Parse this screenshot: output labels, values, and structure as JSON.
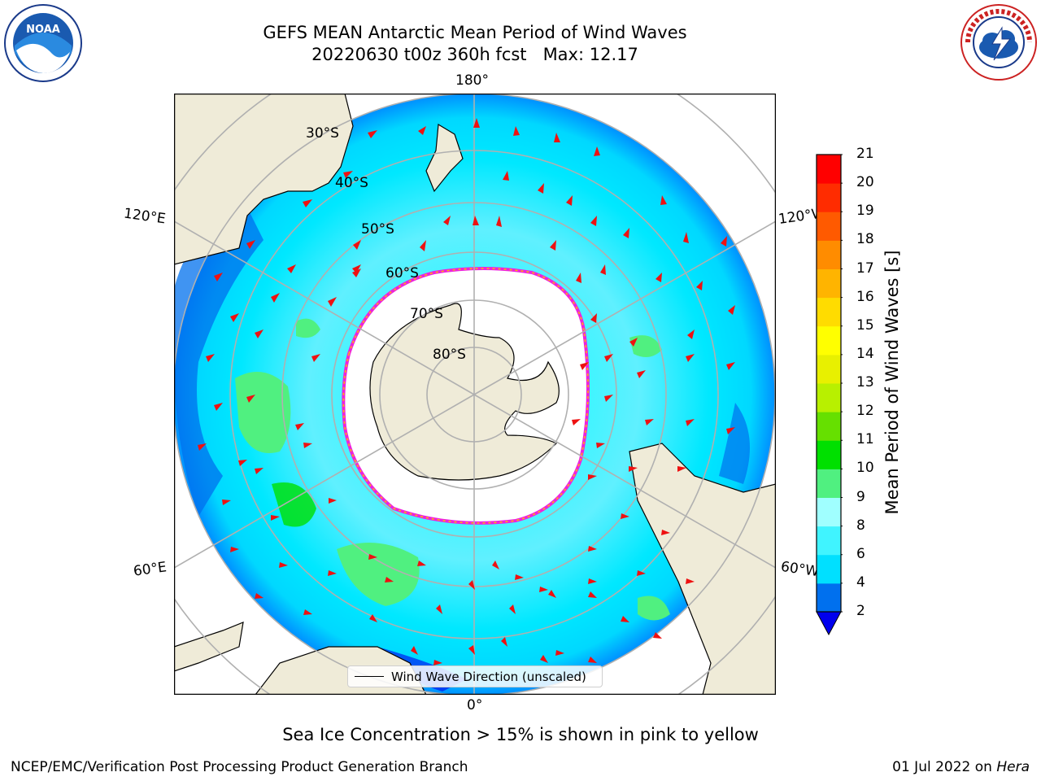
{
  "header": {
    "title_line1": "GEFS MEAN Antarctic Mean Period of Wind Waves",
    "title_line2": "20220630 t00z 360h fcst   Max: 12.17"
  },
  "logos": {
    "left_icon": "noaa-logo-icon",
    "left_text": "NOAA",
    "right_icon": "nws-logo-icon"
  },
  "map": {
    "longitude_labels": {
      "top": "180°",
      "bottom": "0°",
      "upper_left": "120°E",
      "upper_right": "120°W",
      "lower_left": "60°E",
      "lower_right": "60°W"
    },
    "latitude_labels": [
      "30°S",
      "40°S",
      "50°S",
      "60°S",
      "70°S",
      "80°S"
    ],
    "colors": {
      "land": "#efebd8",
      "ice": "#ffffff",
      "ice_edge": "#ee22dd",
      "ice_edge_inner": "#ffbb00",
      "grid": "#b0b0b0",
      "arrow": "#ee1111"
    },
    "legend_label": "Wind Wave Direction (unscaled)"
  },
  "colorbar": {
    "label": "Mean Period of Wind Waves [s]",
    "ticks": [
      "2",
      "4",
      "6",
      "8",
      "9",
      "10",
      "11",
      "12",
      "13",
      "14",
      "15",
      "16",
      "17",
      "18",
      "19",
      "20",
      "21"
    ],
    "colors": [
      "#0070ee",
      "#00e0ff",
      "#40f4ff",
      "#a0ffff",
      "#50f080",
      "#00e000",
      "#66e000",
      "#b8f000",
      "#e8f000",
      "#ffff00",
      "#ffdc00",
      "#ffb400",
      "#ff8c00",
      "#ff5a00",
      "#ff2c00",
      "#ff0000"
    ],
    "under_color": "#0000ee"
  },
  "subtitle": "Sea Ice Concentration > 15% is shown in pink to yellow",
  "footer": {
    "left": "NCEP/EMC/Verification Post Processing Product Generation Branch",
    "right_date": "01 Jul 2022 on ",
    "right_host": "Hera"
  }
}
